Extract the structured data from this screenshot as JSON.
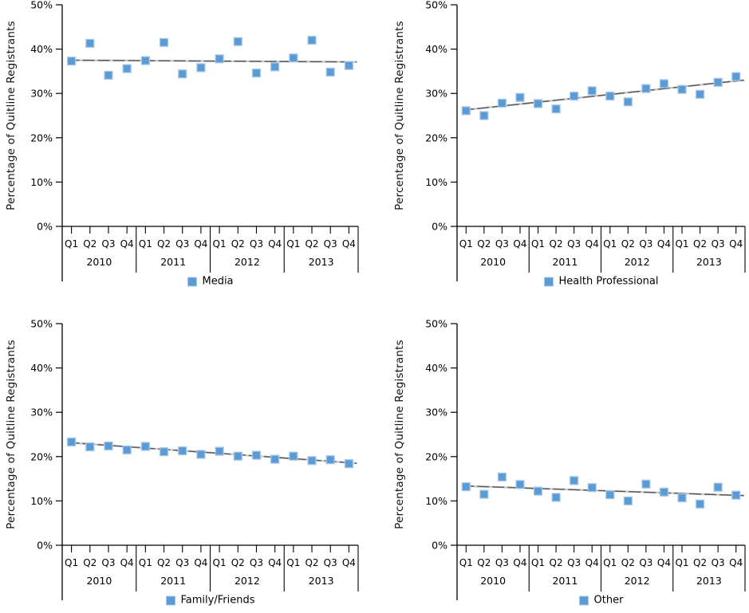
{
  "figure": {
    "y_axis_title": "Percentage of Quitline Registrants",
    "y_tick_labels": [
      "0%",
      "10%",
      "20%",
      "30%",
      "40%",
      "50%"
    ],
    "quarter_labels": [
      "Q1",
      "Q2",
      "Q3",
      "Q4"
    ],
    "year_labels": [
      "2010",
      "2011",
      "2012",
      "2013"
    ]
  },
  "colors": {
    "marker_fill": "#5b9bd5",
    "marker_border": "#a9c9e9",
    "trendline_dark": "#595959",
    "trendline_light": "#c9c9c9",
    "axis_line": "#000000",
    "background": "#ffffff"
  },
  "chart_data": [
    {
      "type": "scatter",
      "legend": "Media",
      "ylabel": "Percentage of Quitline Registrants",
      "ylim": [
        0,
        50
      ],
      "y_ticks_percent": [
        0,
        10,
        20,
        30,
        40,
        50
      ],
      "categories": [
        "2010 Q1",
        "2010 Q2",
        "2010 Q3",
        "2010 Q4",
        "2011 Q1",
        "2011 Q2",
        "2011 Q3",
        "2011 Q4",
        "2012 Q1",
        "2012 Q2",
        "2012 Q3",
        "2012 Q4",
        "2013 Q1",
        "2013 Q2",
        "2013 Q3",
        "2013 Q4"
      ],
      "values": [
        37.3,
        41.3,
        34.1,
        35.6,
        37.4,
        41.5,
        34.4,
        35.8,
        37.8,
        41.7,
        34.6,
        36.0,
        38.0,
        42.0,
        34.8,
        36.3
      ],
      "trendline": {
        "type": "linear",
        "start": 37.5,
        "end": 37.1
      }
    },
    {
      "type": "scatter",
      "legend": "Health Professional",
      "ylabel": "Percentage of Quitline Registrants",
      "ylim": [
        0,
        50
      ],
      "y_ticks_percent": [
        0,
        10,
        20,
        30,
        40,
        50
      ],
      "categories": [
        "2010 Q1",
        "2010 Q2",
        "2010 Q3",
        "2010 Q4",
        "2011 Q1",
        "2011 Q2",
        "2011 Q3",
        "2011 Q4",
        "2012 Q1",
        "2012 Q2",
        "2012 Q3",
        "2012 Q4",
        "2013 Q1",
        "2013 Q2",
        "2013 Q3",
        "2013 Q4"
      ],
      "values": [
        26.1,
        25.0,
        27.8,
        29.1,
        27.7,
        26.5,
        29.4,
        30.6,
        29.4,
        28.1,
        31.1,
        32.2,
        30.9,
        29.8,
        32.5,
        33.8
      ],
      "trendline": {
        "type": "linear",
        "start": 26.2,
        "end": 33.0
      }
    },
    {
      "type": "scatter",
      "legend": "Family/Friends",
      "ylabel": "Percentage of Quitline Registrants",
      "ylim": [
        0,
        50
      ],
      "y_ticks_percent": [
        0,
        10,
        20,
        30,
        40,
        50
      ],
      "categories": [
        "2010 Q1",
        "2010 Q2",
        "2010 Q3",
        "2010 Q4",
        "2011 Q1",
        "2011 Q2",
        "2011 Q3",
        "2011 Q4",
        "2012 Q1",
        "2012 Q2",
        "2012 Q3",
        "2012 Q4",
        "2013 Q1",
        "2013 Q2",
        "2013 Q3",
        "2013 Q4"
      ],
      "values": [
        23.3,
        22.2,
        22.4,
        21.5,
        22.3,
        21.1,
        21.3,
        20.5,
        21.2,
        20.1,
        20.3,
        19.4,
        20.1,
        19.1,
        19.3,
        18.4
      ],
      "trendline": {
        "type": "linear",
        "start": 23.2,
        "end": 18.5
      }
    },
    {
      "type": "scatter",
      "legend": "Other",
      "ylabel": "Percentage of Quitline Registrants",
      "ylim": [
        0,
        50
      ],
      "y_ticks_percent": [
        0,
        10,
        20,
        30,
        40,
        50
      ],
      "categories": [
        "2010 Q1",
        "2010 Q2",
        "2010 Q3",
        "2010 Q4",
        "2011 Q1",
        "2011 Q2",
        "2011 Q3",
        "2011 Q4",
        "2012 Q1",
        "2012 Q2",
        "2012 Q3",
        "2012 Q4",
        "2013 Q1",
        "2013 Q2",
        "2013 Q3",
        "2013 Q4"
      ],
      "values": [
        13.2,
        11.5,
        15.4,
        13.7,
        12.2,
        10.8,
        14.6,
        13.0,
        11.4,
        10.0,
        13.8,
        12.0,
        10.7,
        9.3,
        13.1,
        11.3
      ],
      "trendline": {
        "type": "linear",
        "start": 13.4,
        "end": 11.2
      }
    }
  ]
}
